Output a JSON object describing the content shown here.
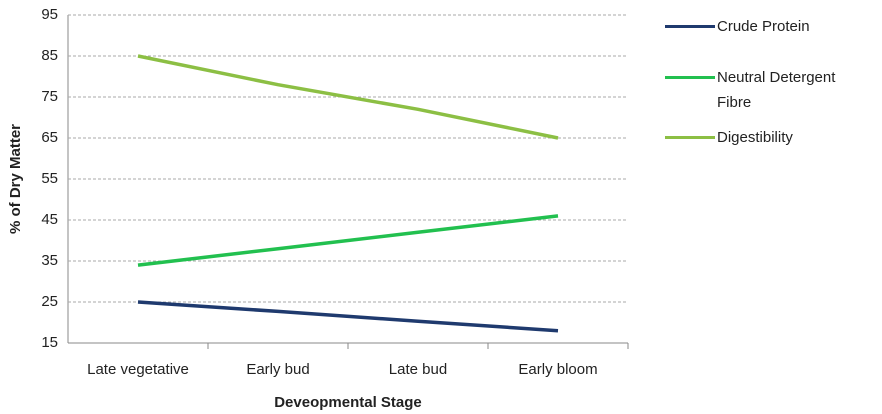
{
  "chart_data": {
    "type": "line",
    "x_label": "Deveopmental Stage",
    "y_label": "% of Dry Matter",
    "categories": [
      "Late vegetative",
      "Early bud",
      "Late bud",
      "Early bloom"
    ],
    "series": [
      {
        "name": "Crude Protein",
        "color": "#1f3a6e",
        "values": [
          25,
          22.7,
          20.3,
          18
        ]
      },
      {
        "name": "Neutral Detergent Fibre",
        "color": "#22c04f",
        "values": [
          34,
          38,
          42,
          46
        ]
      },
      {
        "name": "Digestibility",
        "color": "#8cbf44",
        "values": [
          85,
          78,
          72,
          65
        ]
      }
    ],
    "ylim": [
      15,
      95
    ],
    "yticks": [
      15,
      25,
      35,
      45,
      55,
      65,
      75,
      85,
      95
    ],
    "grid": true
  }
}
